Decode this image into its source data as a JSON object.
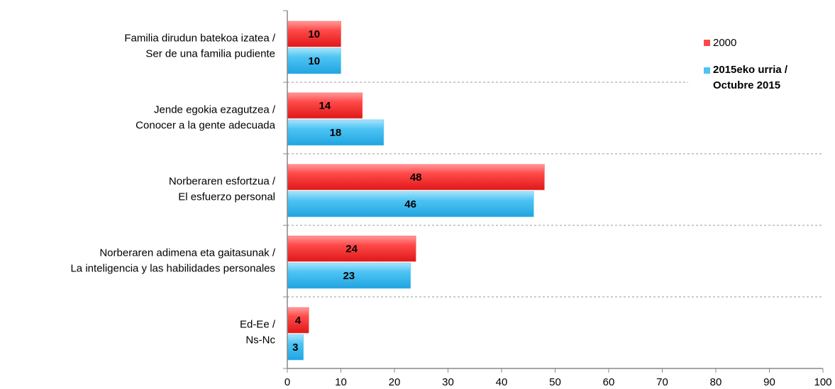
{
  "chart_data": {
    "type": "hbar",
    "categories": [
      [
        "Familia dirudun batekoa izatea /",
        "Ser de una familia pudiente"
      ],
      [
        "Jende egokia ezagutzea /",
        "Conocer a la gente adecuada"
      ],
      [
        "Norberaren esfortzua /",
        "El esfuerzo personal"
      ],
      [
        "Norberaren adimena eta gaitasunak /",
        "La inteligencia y las habilidades personales"
      ],
      [
        "Ed-Ee /",
        "Ns-Nc"
      ]
    ],
    "series": [
      {
        "name": "2000",
        "color": "#ff4a4a",
        "values": [
          10,
          14,
          48,
          24,
          4
        ]
      },
      {
        "name": "2015eko urria / Octubre 2015",
        "color": "#4ec4f4",
        "values": [
          10,
          18,
          46,
          23,
          3
        ]
      }
    ],
    "xlim": [
      0,
      100
    ],
    "xticks": [
      0,
      10,
      20,
      30,
      40,
      50,
      60,
      70,
      80,
      90,
      100
    ]
  }
}
